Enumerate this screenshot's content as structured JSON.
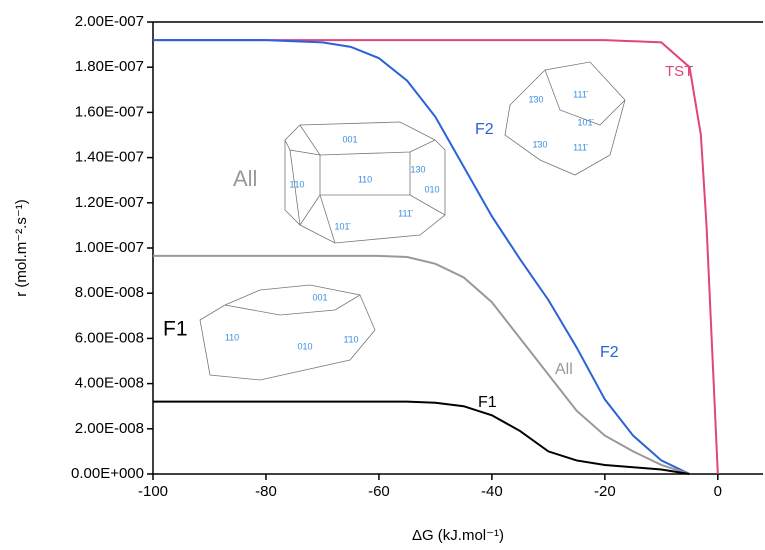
{
  "chart_data": {
    "type": "line",
    "x_label": "ΔG (kJ.mol⁻¹)",
    "y_label": "r (mol.m⁻².s⁻¹)",
    "xlim": [
      -100,
      8
    ],
    "ylim": [
      0,
      2e-07
    ],
    "xticks": [
      -100,
      -80,
      -60,
      -40,
      -20,
      0
    ],
    "yticks": [
      {
        "value": 0,
        "label": "0.00E+000"
      },
      {
        "value": 2e-08,
        "label": "2.00E-008"
      },
      {
        "value": 4e-08,
        "label": "4.00E-008"
      },
      {
        "value": 6e-08,
        "label": "6.00E-008"
      },
      {
        "value": 8e-08,
        "label": "8.00E-008"
      },
      {
        "value": 1e-07,
        "label": "1.00E-007"
      },
      {
        "value": 1.2e-07,
        "label": "1.20E-007"
      },
      {
        "value": 1.4e-07,
        "label": "1.40E-007"
      },
      {
        "value": 1.6e-07,
        "label": "1.60E-007"
      },
      {
        "value": 1.8e-07,
        "label": "1.80E-007"
      },
      {
        "value": 2e-07,
        "label": "2.00E-007"
      }
    ],
    "grid": false,
    "series": [
      {
        "name": "TST",
        "color": "#e0457b",
        "x": [
          -100,
          -80,
          -60,
          -40,
          -20,
          -10,
          -5,
          -3,
          -2,
          -1,
          0
        ],
        "values": [
          1.92e-07,
          1.92e-07,
          1.92e-07,
          1.92e-07,
          1.92e-07,
          1.91e-07,
          1.8e-07,
          1.5e-07,
          1.1e-07,
          5.5e-08,
          0
        ]
      },
      {
        "name": "F2",
        "color": "#2a62d8",
        "x": [
          -100,
          -80,
          -70,
          -65,
          -60,
          -55,
          -50,
          -45,
          -40,
          -35,
          -30,
          -25,
          -20,
          -15,
          -10,
          -5
        ],
        "values": [
          1.92e-07,
          1.92e-07,
          1.91e-07,
          1.89e-07,
          1.84e-07,
          1.74e-07,
          1.58e-07,
          1.36e-07,
          1.14e-07,
          9.5e-08,
          7.7e-08,
          5.6e-08,
          3.3e-08,
          1.7e-08,
          6e-09,
          0
        ]
      },
      {
        "name": "All",
        "color": "#999999",
        "x": [
          -100,
          -60,
          -55,
          -50,
          -45,
          -40,
          -35,
          -30,
          -25,
          -20,
          -15,
          -10,
          -5
        ],
        "values": [
          9.65e-08,
          9.65e-08,
          9.6e-08,
          9.3e-08,
          8.7e-08,
          7.6e-08,
          6e-08,
          4.4e-08,
          2.8e-08,
          1.7e-08,
          1e-08,
          4e-09,
          0
        ]
      },
      {
        "name": "F1",
        "color": "#000000",
        "x": [
          -100,
          -55,
          -50,
          -45,
          -40,
          -35,
          -30,
          -25,
          -20,
          -15,
          -10,
          -5
        ],
        "values": [
          3.2e-08,
          3.2e-08,
          3.15e-08,
          3e-08,
          2.6e-08,
          1.9e-08,
          1e-08,
          6e-09,
          4e-09,
          3e-09,
          2e-09,
          0
        ]
      }
    ],
    "annotations": [
      "TST",
      "F2",
      "F2",
      "All",
      "All",
      "F1",
      "F1"
    ],
    "crystal_labels": [
      "001",
      "1̄10",
      "110",
      "130",
      "010",
      "101̄",
      "111̄",
      "1̄30",
      "111̄",
      "101̄",
      "1̄30",
      "111̄",
      "001",
      "110",
      "010",
      "1̄10"
    ]
  }
}
